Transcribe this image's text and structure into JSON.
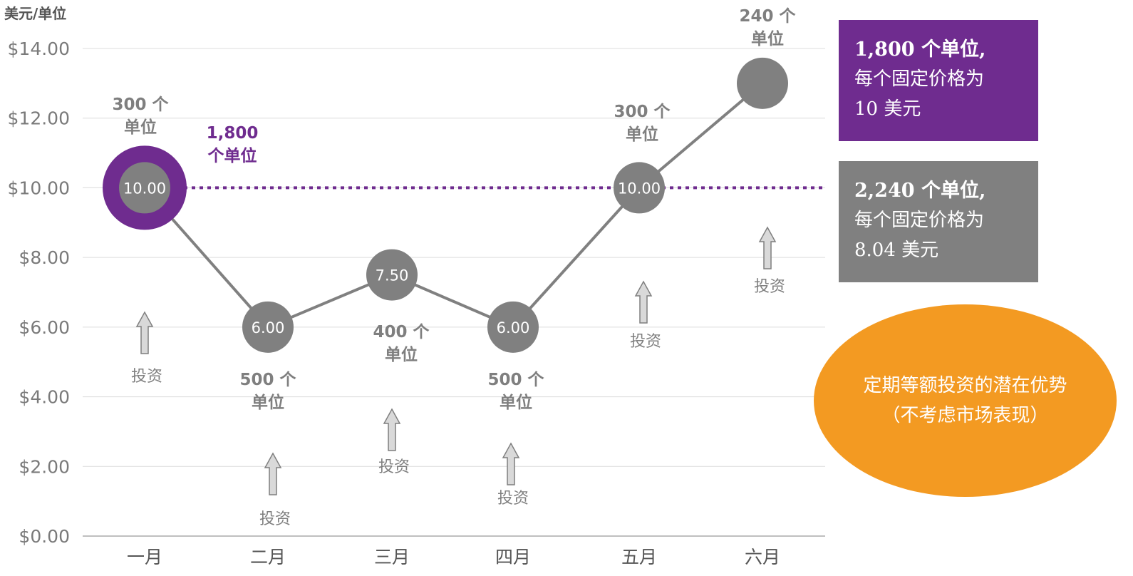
{
  "chart_data": {
    "type": "line",
    "ylabel": "美元/单位",
    "ylim": [
      0,
      14
    ],
    "yticks": [
      "$0.00",
      "$2.00",
      "$4.00",
      "$6.00",
      "$8.00",
      "$10.00",
      "$12.00",
      "$14.00"
    ],
    "categories": [
      "一月",
      "二月",
      "三月",
      "四月",
      "五月",
      "六月"
    ],
    "values": [
      10.0,
      6.0,
      7.5,
      6.0,
      10.0,
      13.0
    ],
    "point_labels": [
      "10.00",
      "6.00",
      "7.50",
      "6.00",
      "10.00",
      ""
    ],
    "units_labels": [
      [
        "300 个",
        "单位"
      ],
      [
        "500 个",
        "单位"
      ],
      [
        "400 个",
        "单位"
      ],
      [
        "500 个",
        "单位"
      ],
      [
        "300 个",
        "单位"
      ],
      [
        "240 个",
        "单位"
      ]
    ],
    "invest_label": "投资",
    "fixed_price": 10.0,
    "fixed_label": [
      "1,800",
      "个单位"
    ],
    "grid": true
  },
  "boxes": {
    "purple": {
      "line1": "1,800 个单位,",
      "line2": "每个固定价格为",
      "line3": "10 美元"
    },
    "gray": {
      "line1": "2,240 个单位,",
      "line2": "每个固定价格为",
      "line3": "8.04 美元"
    }
  },
  "ellipse": {
    "line1": "定期等额投资的潜在优势",
    "line2": "（不考虑市场表现）"
  },
  "colors": {
    "purple": "#6f2c8f",
    "gray": "#808080",
    "orange": "#f39a22",
    "grid": "#dcdcdc",
    "axis_text": "#7a7a7a",
    "label_text": "#7f7f7f"
  }
}
